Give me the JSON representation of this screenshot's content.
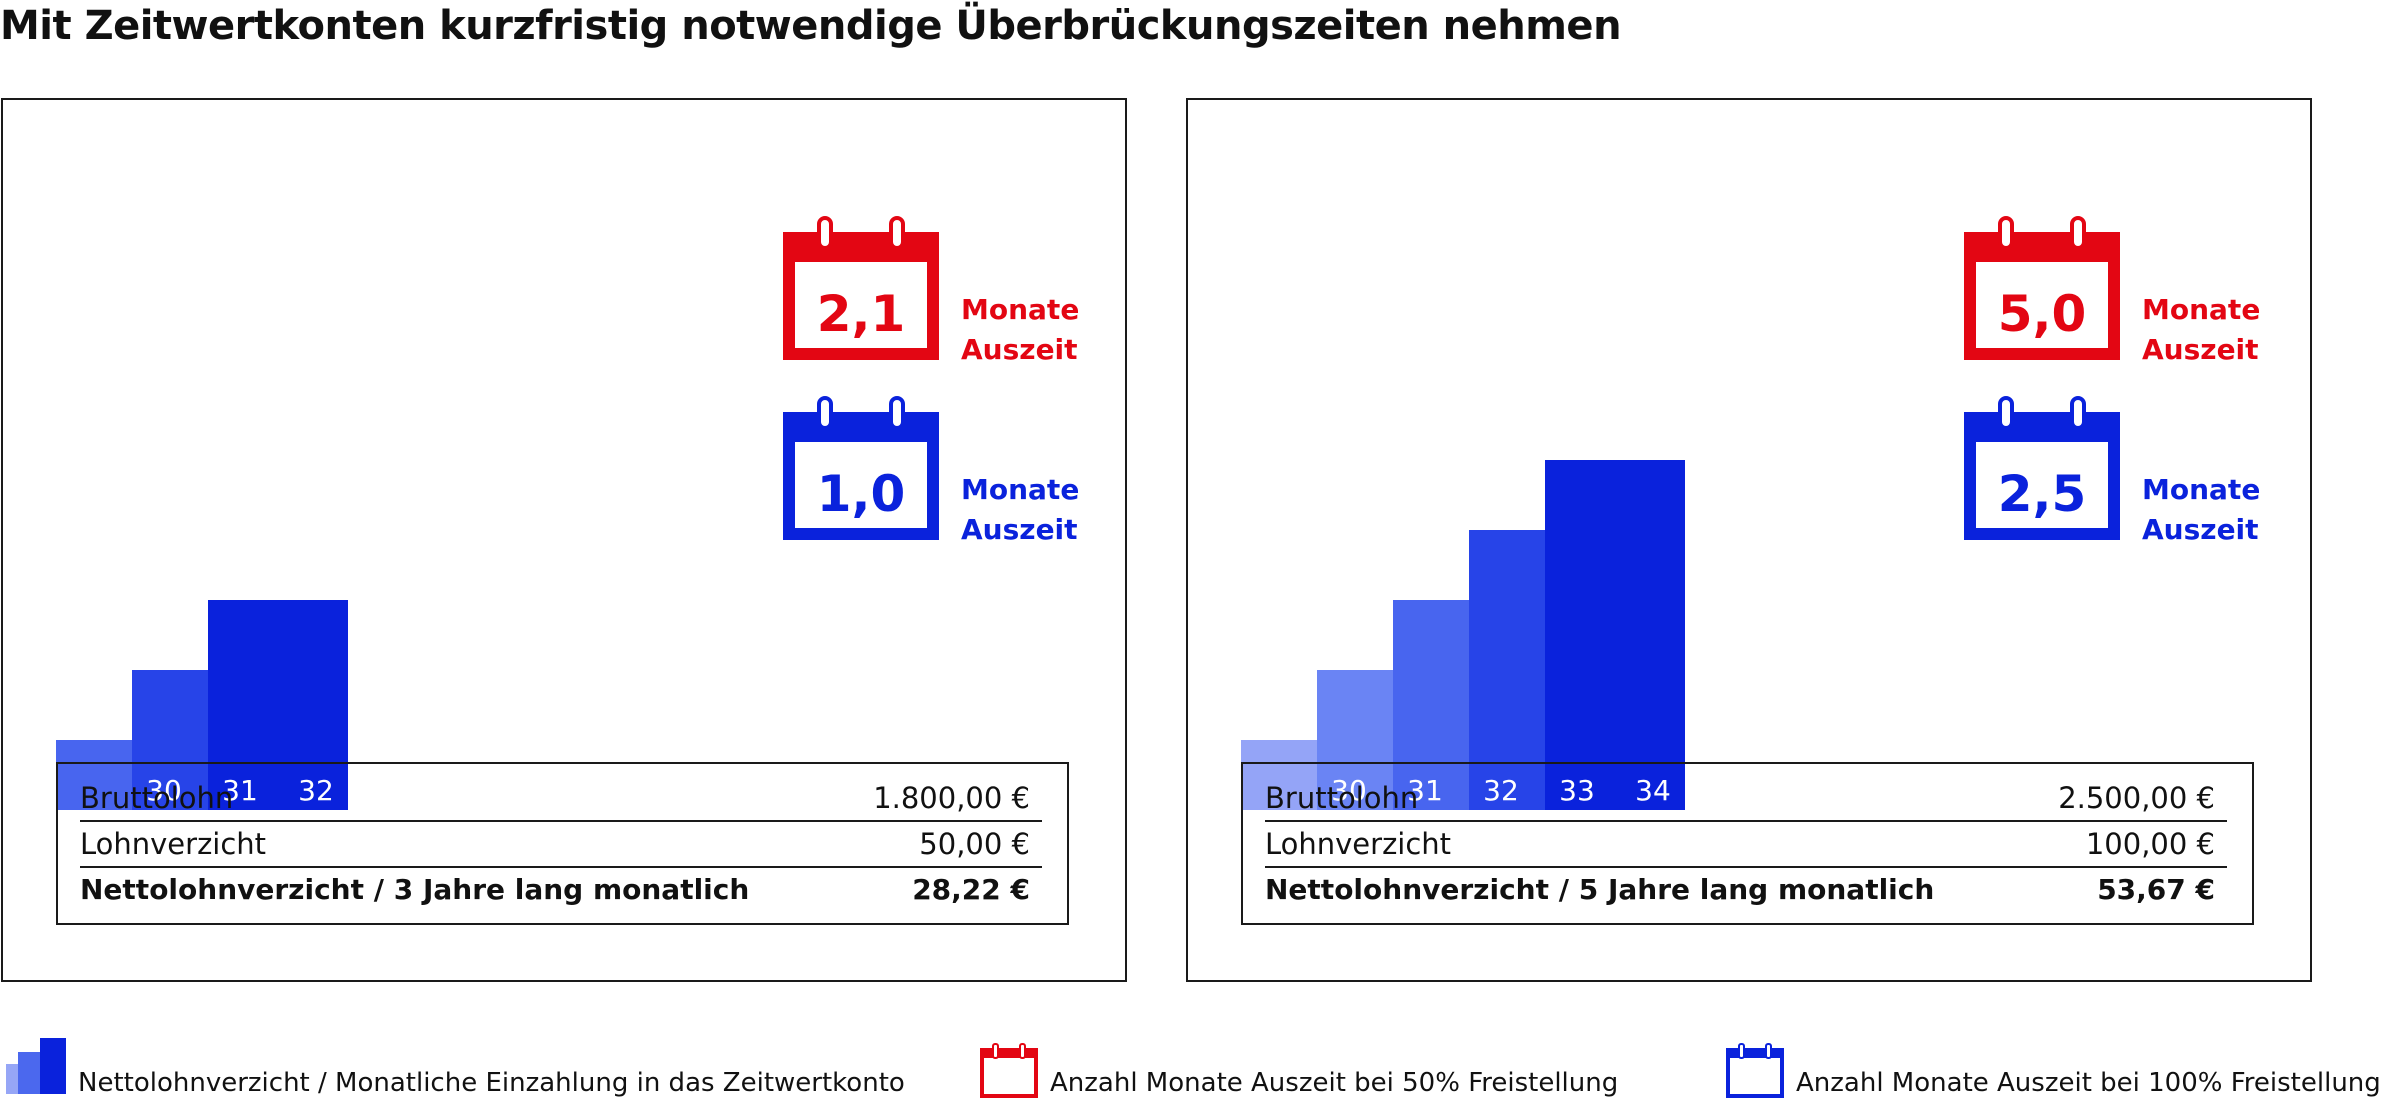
{
  "title": "Mit Zeitwertkonten kurzfristig notwendige Überbrückungszeiten nehmen",
  "colors": {
    "red": "#e30613",
    "blue": "#0a22dc"
  },
  "chart_data": [
    {
      "type": "bar",
      "title": "Nettolohnverzicht / 3 Jahre lang monatlich",
      "categories": [
        "30",
        "31",
        "32"
      ],
      "values": [
        1,
        2,
        3
      ],
      "calendars": [
        {
          "color": "red",
          "value": "2,1",
          "label_line1": "Monate",
          "label_line2": "Auszeit"
        },
        {
          "color": "blue",
          "value": "1,0",
          "label_line1": "Monate",
          "label_line2": "Auszeit"
        }
      ],
      "table": [
        {
          "label": "Bruttolohn",
          "value": "1.800,00 €"
        },
        {
          "label": "Lohnverzicht",
          "value": "50,00 €"
        },
        {
          "label": "Nettolohnverzicht / 3 Jahre lang monatlich",
          "value": "28,22 €"
        }
      ]
    },
    {
      "type": "bar",
      "title": "Nettolohnverzicht / 5 Jahre lang monatlich",
      "categories": [
        "30",
        "31",
        "32",
        "33",
        "34"
      ],
      "values": [
        1,
        2,
        3,
        4,
        5
      ],
      "calendars": [
        {
          "color": "red",
          "value": "5,0",
          "label_line1": "Monate",
          "label_line2": "Auszeit"
        },
        {
          "color": "blue",
          "value": "2,5",
          "label_line1": "Monate",
          "label_line2": "Auszeit"
        }
      ],
      "table": [
        {
          "label": "Bruttolohn",
          "value": "2.500,00 €"
        },
        {
          "label": "Lohnverzicht",
          "value": "100,00 €"
        },
        {
          "label": "Nettolohnverzicht / 5 Jahre lang monatlich",
          "value": "53,67 €"
        }
      ]
    }
  ],
  "legend": [
    {
      "icon": "stacked-bars-icon",
      "text": "Nettolohnverzicht / Monatliche Einzahlung in das Zeitwertkonto"
    },
    {
      "icon": "red-calendar-icon",
      "text": "Anzahl Monate Auszeit  bei 50% Freistellung"
    },
    {
      "icon": "blue-calendar-icon",
      "text": "Anzahl Monate Auszeit bei 100% Freistellung"
    }
  ]
}
